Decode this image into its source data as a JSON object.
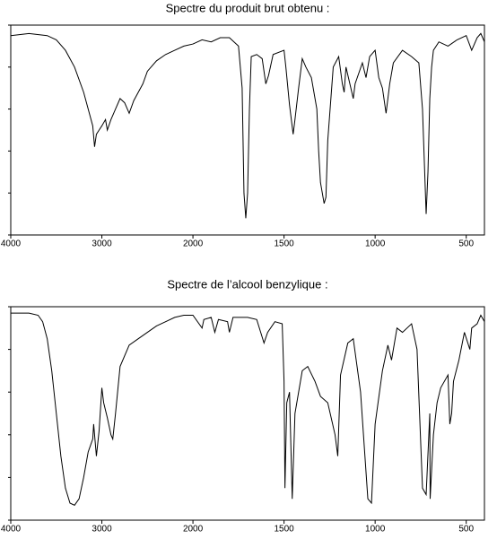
{
  "chart_data": [
    {
      "type": "line",
      "title": "Spectre du produit brut obtenu :",
      "xlim": [
        4000,
        400
      ],
      "xticks": [
        4000,
        3000,
        2000,
        1500,
        1000,
        500
      ],
      "ylim": [
        0,
        100
      ],
      "yticks": [
        0,
        20,
        40,
        60,
        80,
        100
      ],
      "x": [
        4000,
        3800,
        3600,
        3500,
        3400,
        3300,
        3200,
        3100,
        3080,
        3060,
        3030,
        3000,
        2960,
        2940,
        2900,
        2850,
        2800,
        2750,
        2700,
        2650,
        2600,
        2550,
        2500,
        2400,
        2300,
        2200,
        2100,
        2000,
        1950,
        1900,
        1850,
        1800,
        1750,
        1730,
        1720,
        1710,
        1700,
        1690,
        1680,
        1650,
        1620,
        1600,
        1585,
        1560,
        1500,
        1490,
        1470,
        1450,
        1440,
        1420,
        1400,
        1380,
        1350,
        1320,
        1310,
        1300,
        1280,
        1270,
        1260,
        1230,
        1200,
        1180,
        1170,
        1160,
        1120,
        1110,
        1070,
        1050,
        1030,
        1000,
        980,
        960,
        940,
        920,
        900,
        850,
        800,
        760,
        740,
        720,
        710,
        700,
        690,
        680,
        650,
        600,
        550,
        500,
        470,
        440,
        420,
        400
      ],
      "series": [
        {
          "name": "Spectre du produit brut obtenu",
          "color": "#000000",
          "values": [
            95,
            96,
            95,
            93,
            88,
            80,
            68,
            52,
            42,
            48,
            50,
            52,
            55,
            50,
            55,
            60,
            65,
            63,
            58,
            64,
            68,
            72,
            78,
            83,
            86,
            88,
            90,
            91,
            93,
            92,
            94,
            94,
            90,
            70,
            20,
            8,
            20,
            60,
            85,
            86,
            84,
            72,
            76,
            86,
            88,
            80,
            62,
            48,
            55,
            70,
            84,
            80,
            75,
            60,
            40,
            25,
            15,
            18,
            45,
            80,
            85,
            72,
            68,
            80,
            65,
            72,
            82,
            75,
            85,
            88,
            75,
            70,
            58,
            72,
            82,
            88,
            85,
            82,
            60,
            10,
            30,
            65,
            80,
            88,
            92,
            90,
            93,
            95,
            88,
            94,
            96,
            92
          ]
        }
      ]
    },
    {
      "type": "line",
      "title": "Spectre de l’alcool benzylique :",
      "xlim": [
        4000,
        400
      ],
      "xticks": [
        4000,
        3000,
        2000,
        1500,
        1000,
        500
      ],
      "ylim": [
        0,
        100
      ],
      "yticks": [
        0,
        20,
        40,
        60,
        80,
        100
      ],
      "x": [
        4000,
        3800,
        3700,
        3650,
        3600,
        3550,
        3500,
        3450,
        3400,
        3350,
        3300,
        3250,
        3200,
        3150,
        3100,
        3090,
        3060,
        3030,
        3000,
        2980,
        2940,
        2900,
        2880,
        2850,
        2800,
        2700,
        2600,
        2500,
        2400,
        2300,
        2200,
        2100,
        2000,
        1950,
        1940,
        1900,
        1880,
        1860,
        1810,
        1800,
        1780,
        1700,
        1650,
        1610,
        1590,
        1550,
        1510,
        1500,
        1495,
        1485,
        1470,
        1455,
        1440,
        1400,
        1370,
        1330,
        1300,
        1260,
        1220,
        1205,
        1190,
        1150,
        1120,
        1080,
        1040,
        1020,
        1000,
        960,
        930,
        910,
        880,
        850,
        800,
        770,
        740,
        720,
        700,
        698,
        680,
        660,
        640,
        600,
        590,
        580,
        570,
        540,
        510,
        480,
        470,
        440,
        420,
        400
      ],
      "series": [
        {
          "name": "Spectre de l’alcool benzylique",
          "color": "#000000",
          "values": [
            97,
            97,
            96,
            93,
            85,
            70,
            50,
            30,
            15,
            8,
            7,
            10,
            20,
            32,
            38,
            45,
            30,
            42,
            62,
            55,
            48,
            40,
            38,
            50,
            72,
            82,
            85,
            88,
            91,
            93,
            95,
            96,
            96,
            90,
            94,
            95,
            88,
            94,
            93,
            88,
            95,
            95,
            94,
            83,
            88,
            93,
            92,
            65,
            15,
            55,
            60,
            10,
            50,
            70,
            72,
            65,
            58,
            55,
            40,
            30,
            68,
            83,
            85,
            60,
            10,
            8,
            45,
            70,
            82,
            75,
            90,
            88,
            92,
            80,
            15,
            12,
            50,
            10,
            40,
            55,
            62,
            68,
            45,
            50,
            65,
            75,
            88,
            80,
            90,
            92,
            96,
            93
          ]
        }
      ]
    }
  ]
}
